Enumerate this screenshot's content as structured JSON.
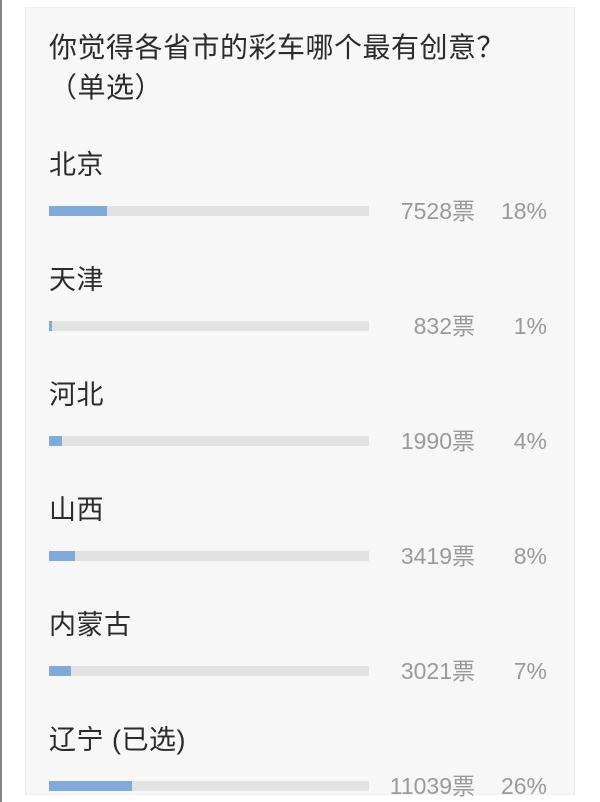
{
  "colors": {
    "bar_fill": "#7fabdc",
    "bar_track": "#e2e2e2",
    "label_text": "#2b2b2b",
    "value_text": "#9a9a9a",
    "card_bg": "#f7f7f8"
  },
  "question": {
    "line1": "你觉得各省市的彩车哪个最有创意？",
    "line2": "（单选）"
  },
  "options": [
    {
      "label": "北京",
      "votes": "7528票",
      "percent_label": "18%",
      "percent": 18
    },
    {
      "label": "天津",
      "votes": "832票",
      "percent_label": "1%",
      "percent": 1
    },
    {
      "label": "河北",
      "votes": "1990票",
      "percent_label": "4%",
      "percent": 4
    },
    {
      "label": "山西",
      "votes": "3419票",
      "percent_label": "8%",
      "percent": 8
    },
    {
      "label": "内蒙古",
      "votes": "3021票",
      "percent_label": "7%",
      "percent": 7
    },
    {
      "label": "辽宁 (已选)",
      "votes": "11039票",
      "percent_label": "26%",
      "percent": 26
    }
  ]
}
